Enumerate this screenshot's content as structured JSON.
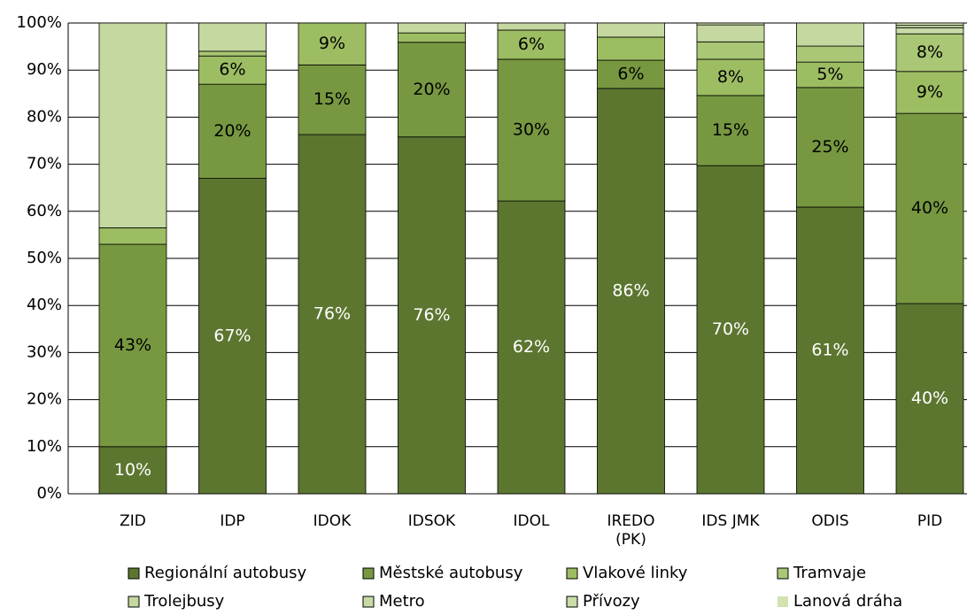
{
  "chart_data": {
    "type": "stacked_bar",
    "categories": [
      "ZID",
      "IDP",
      "IDOK",
      "IDSOK",
      "IDOL",
      "IREDO (PK)",
      "IDS JMK",
      "ODIS",
      "PID"
    ],
    "series": [
      {
        "name": "Regionální autobusy",
        "color": "#5c7630",
        "values": [
          10,
          67,
          76.3,
          75.8,
          62.2,
          86.1,
          69.7,
          60.9,
          40.4
        ],
        "value_labels": [
          "10%",
          "67%",
          "76%",
          "76%",
          "62%",
          "86%",
          "70%",
          "61%",
          "40%"
        ]
      },
      {
        "name": "Městské autobusy",
        "color": "#779840",
        "values": [
          43,
          20,
          14.8,
          20.1,
          30.1,
          6,
          14.9,
          25.4,
          40.4
        ],
        "value_labels": [
          "43%",
          "20%",
          "15%",
          "20%",
          "30%",
          "6%",
          "15%",
          "25%",
          "40%"
        ]
      },
      {
        "name": "Vlakové linky",
        "color": "#9dbd62",
        "values": [
          3.5,
          6,
          8.9,
          2,
          6.2,
          4.9,
          7.7,
          5.4,
          8.9
        ],
        "value_labels": [
          null,
          "6%",
          "9%",
          null,
          "6%",
          null,
          "8%",
          "5%",
          "9%"
        ]
      },
      {
        "name": "Tramvaje",
        "color": "#a9c774",
        "values": [
          0,
          1,
          0,
          0,
          0,
          0,
          3.7,
          3.4,
          8
        ],
        "value_labels": [
          null,
          null,
          null,
          null,
          null,
          null,
          null,
          null,
          "8%"
        ]
      },
      {
        "name": "Trolejbusy",
        "color": "#c4d8a0",
        "values": [
          43.5,
          6,
          0,
          2.1,
          1.5,
          3,
          3.6,
          4.9,
          0
        ],
        "value_labels": [
          null,
          null,
          null,
          null,
          null,
          null,
          null,
          null,
          null
        ]
      },
      {
        "name": "Metro",
        "color": "#c8dba6",
        "values": [
          0,
          0,
          0,
          0,
          0,
          0,
          0,
          0,
          1.3
        ],
        "value_labels": [
          null,
          null,
          null,
          null,
          null,
          null,
          null,
          null,
          null
        ]
      },
      {
        "name": "Přívozy",
        "color": "#cadda8",
        "values": [
          0,
          0,
          0,
          0,
          0,
          0,
          0,
          0,
          0.5
        ],
        "value_labels": [
          null,
          null,
          null,
          null,
          null,
          null,
          null,
          null,
          null
        ]
      },
      {
        "name": "Lanová dráha",
        "color": "#d2e3b0",
        "values": [
          0,
          0,
          0,
          0,
          0,
          0,
          0.4,
          0,
          0.5
        ],
        "value_labels": [
          null,
          null,
          null,
          null,
          null,
          null,
          null,
          null,
          null
        ]
      }
    ],
    "ylim": [
      0,
      100
    ],
    "yticks": [
      {
        "value": 0,
        "label": "0%"
      },
      {
        "value": 10,
        "label": "10%"
      },
      {
        "value": 20,
        "label": "20%"
      },
      {
        "value": 30,
        "label": "30%"
      },
      {
        "value": 40,
        "label": "40%"
      },
      {
        "value": 50,
        "label": "50%"
      },
      {
        "value": 60,
        "label": "60%"
      },
      {
        "value": 70,
        "label": "70%"
      },
      {
        "value": 80,
        "label": "80%"
      },
      {
        "value": 90,
        "label": "90%"
      },
      {
        "value": 100,
        "label": "100%"
      }
    ],
    "grid": true,
    "legend": "bottom"
  }
}
